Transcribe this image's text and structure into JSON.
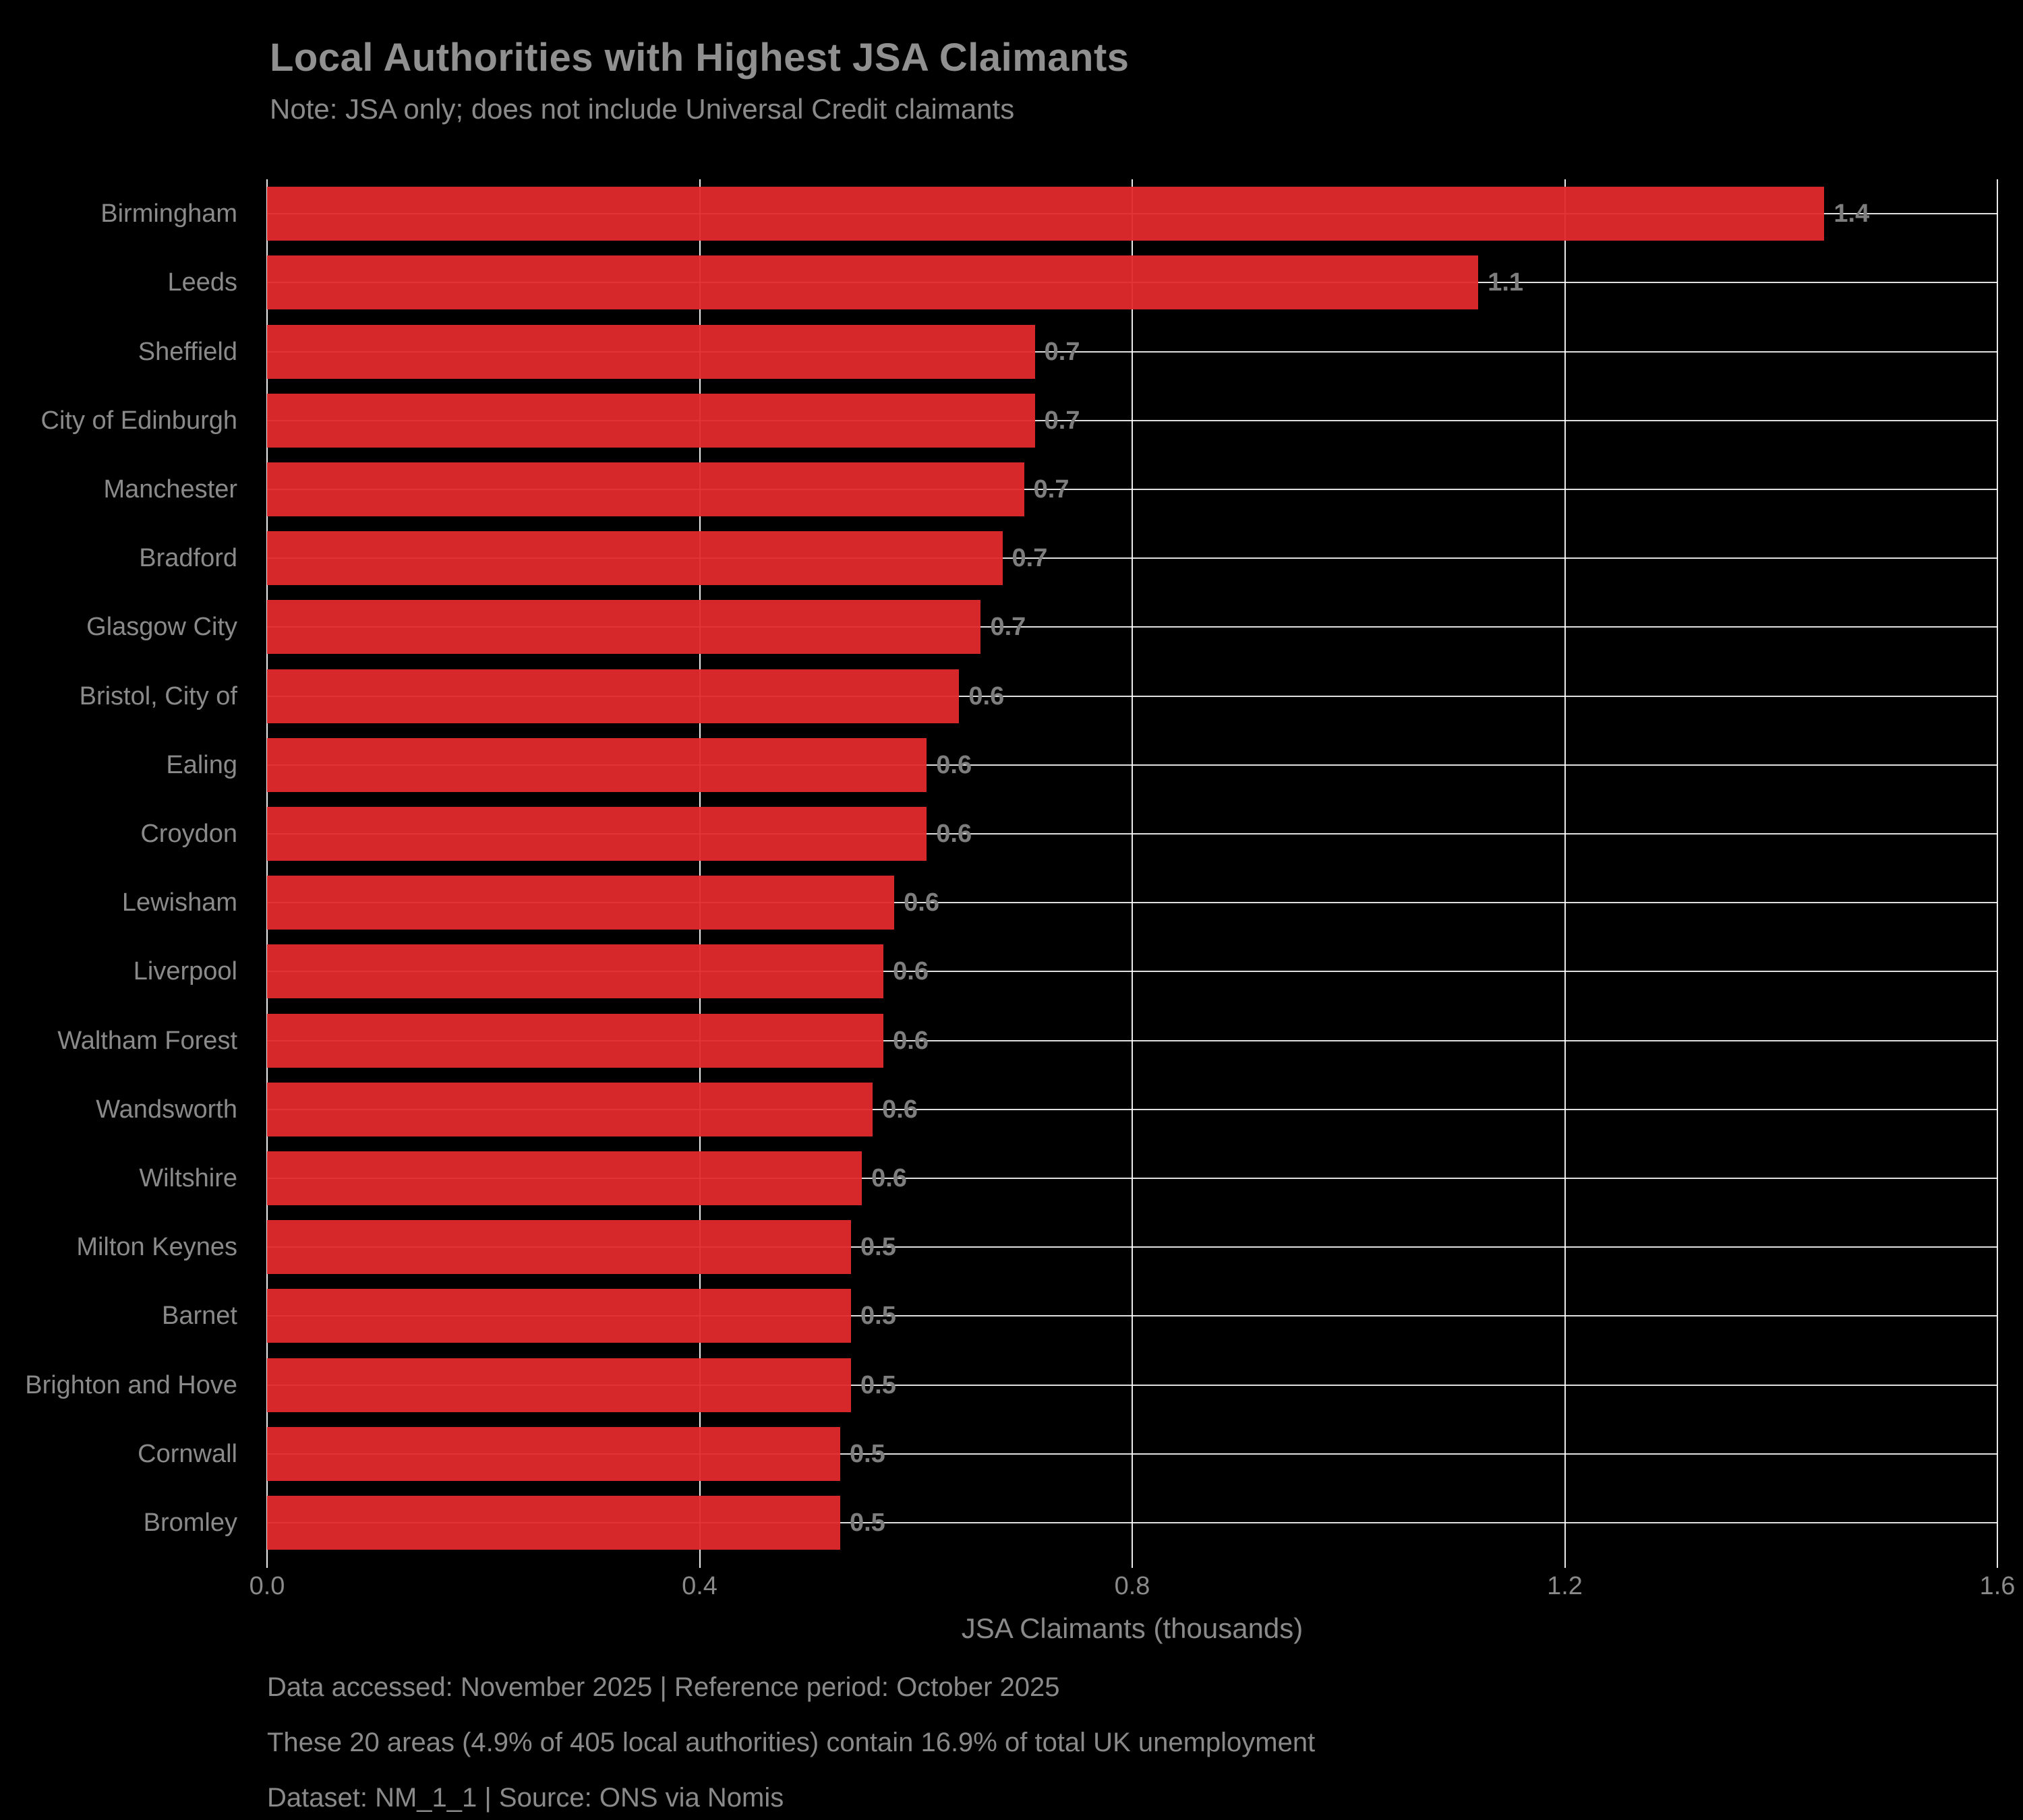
{
  "chart_data": {
    "type": "bar",
    "orientation": "horizontal",
    "title": "Local Authorities with Highest JSA Claimants",
    "subtitle": "Note: JSA only; does not include Universal Credit claimants",
    "xlabel": "JSA Claimants (thousands)",
    "xlim": [
      0,
      1.6
    ],
    "xticks": [
      "0.0",
      "0.4",
      "0.8",
      "1.2",
      "1.6"
    ],
    "grid": "on",
    "legend": "none",
    "categories": [
      "Birmingham",
      "Leeds",
      "Sheffield",
      "City of Edinburgh",
      "Manchester",
      "Bradford",
      "Glasgow City",
      "Bristol, City of",
      "Ealing",
      "Croydon",
      "Lewisham",
      "Liverpool",
      "Waltham Forest",
      "Wandsworth",
      "Wiltshire",
      "Milton Keynes",
      "Barnet",
      "Brighton and Hove",
      "Cornwall",
      "Bromley"
    ],
    "values": [
      1.44,
      1.12,
      0.71,
      0.71,
      0.7,
      0.68,
      0.66,
      0.64,
      0.61,
      0.61,
      0.58,
      0.57,
      0.57,
      0.56,
      0.55,
      0.54,
      0.54,
      0.54,
      0.53,
      0.53
    ],
    "value_labels": [
      "1.4",
      "1.1",
      "0.7",
      "0.7",
      "0.7",
      "0.7",
      "0.7",
      "0.6",
      "0.6",
      "0.6",
      "0.6",
      "0.6",
      "0.6",
      "0.6",
      "0.6",
      "0.5",
      "0.5",
      "0.5",
      "0.5",
      "0.5"
    ],
    "footnotes": [
      "Data accessed: November 2025 | Reference period: October 2025",
      "These 20 areas (4.9% of 405 local authorities) contain 16.9% of total UK unemployment",
      "Dataset: NM_1_1 | Source: ONS via Nomis"
    ],
    "colors": {
      "background": "#000000",
      "bar": "#d62728",
      "gridline": "#ffffff",
      "title_text": "#909090",
      "text": "#8a8a8a",
      "value_label_text": "#7e7e7e"
    }
  }
}
